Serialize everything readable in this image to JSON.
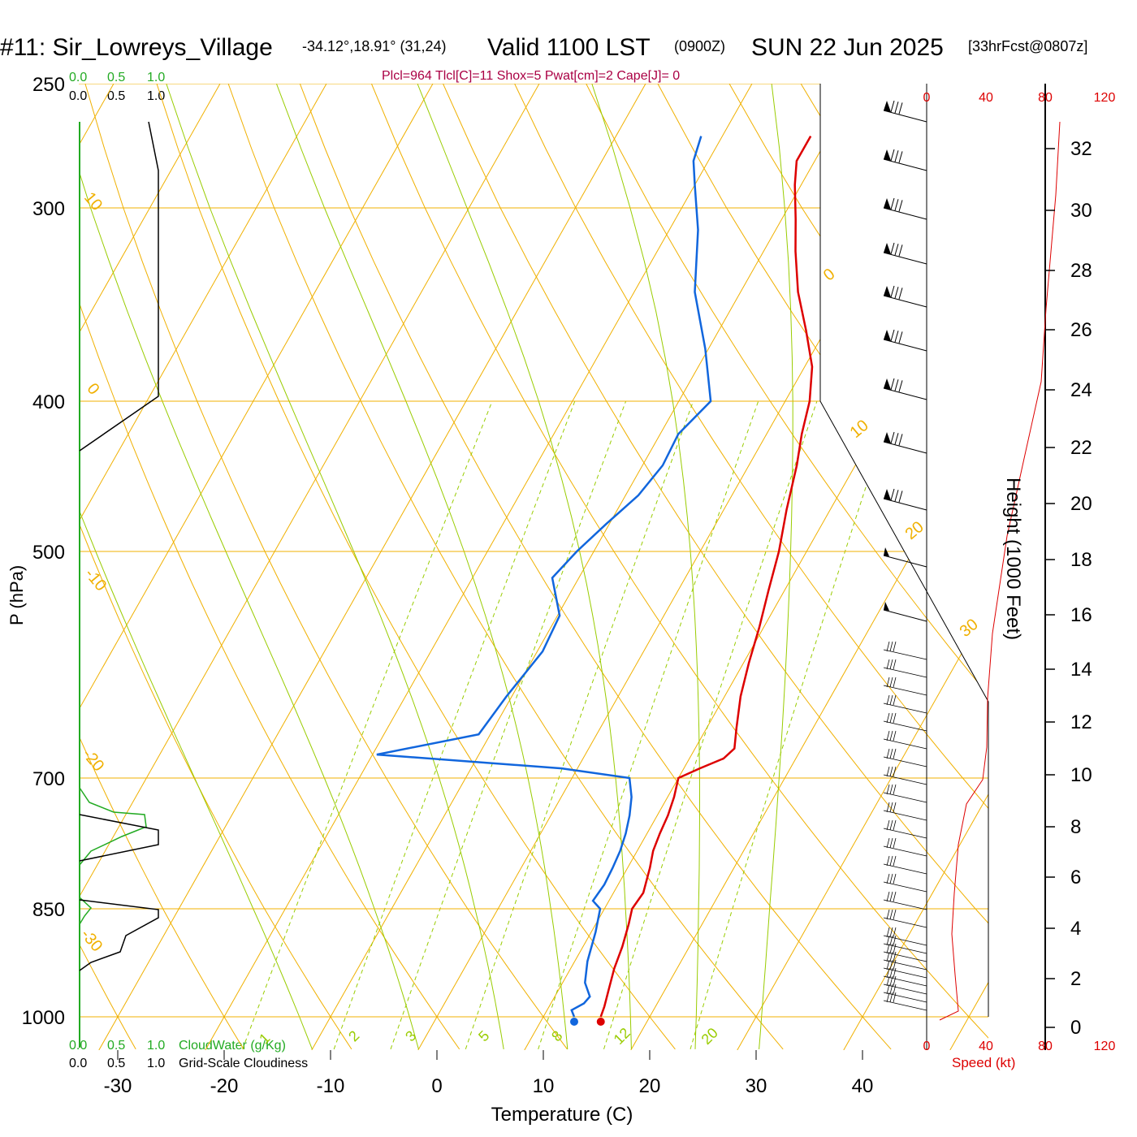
{
  "header": {
    "station": "#11: Sir_Lowreys_Village",
    "coords": "-34.12°,18.91° (31,24)",
    "valid": "Valid 1100 LST",
    "zulu": "(0900Z)",
    "date": "SUN 22 Jun 2025",
    "forecast": "[33hrFcst@0807z]",
    "indices": "Plcl=964 Tlcl[C]=11 Shox=5 Pwat[cm]=2 Cape[J]= 0"
  },
  "cloud_scale_top_green": [
    "0.0",
    "0.5",
    "1.0"
  ],
  "cloud_scale_top_black": [
    "0.0",
    "0.5",
    "1.0"
  ],
  "cloud_scale_bottom_green": [
    "0.0",
    "0.5",
    "1.0"
  ],
  "cloud_scale_bottom_black": [
    "0.0",
    "0.5",
    "1.0"
  ],
  "cloudwater_label": "CloudWater (g/Kg)",
  "cloudiness_label": "Grid-Scale Cloudiness",
  "colors": {
    "temperature": "#dd0000",
    "dewpoint": "#1166dd",
    "isobar": "#f0b000",
    "dry_adiabat": "#99cc00",
    "cloud_water": "#22aa22",
    "cloudiness": "#000000"
  },
  "chart_data": {
    "type": "line",
    "xlabel": "Temperature (C)",
    "ylabel": "P (hPa)",
    "x_ticks": [
      "-30",
      "-20",
      "-10",
      "0",
      "10",
      "20",
      "30",
      "40"
    ],
    "p_ticks": [
      "250",
      "300",
      "400",
      "500",
      "700",
      "850",
      "1000"
    ],
    "isotherm_labels": [
      {
        "text": "0",
        "axis": "right"
      },
      {
        "text": "10",
        "axis": "right"
      },
      {
        "text": "20",
        "axis": "right"
      },
      {
        "text": "30",
        "axis": "right"
      },
      {
        "text": "10",
        "axis": "left"
      },
      {
        "text": "0",
        "axis": "left"
      },
      {
        "text": "-10",
        "axis": "left"
      },
      {
        "text": "-20",
        "axis": "left"
      },
      {
        "text": "-30",
        "axis": "left"
      }
    ],
    "mixing_ratio_labels": [
      "1",
      "2",
      "3",
      "5",
      "8",
      "12",
      "20"
    ],
    "series": [
      {
        "name": "Temperature",
        "points": [
          [
            15.4,
            1000
          ],
          [
            15.2,
            985
          ],
          [
            14.7,
            960
          ],
          [
            14.1,
            930
          ],
          [
            13.7,
            900
          ],
          [
            13.1,
            870
          ],
          [
            12.6,
            850
          ],
          [
            12.8,
            830
          ],
          [
            12.1,
            800
          ],
          [
            11.5,
            780
          ],
          [
            11.2,
            760
          ],
          [
            11.0,
            740
          ],
          [
            10.6,
            720
          ],
          [
            10.0,
            700
          ],
          [
            11.5,
            690
          ],
          [
            13.2,
            680
          ],
          [
            13.7,
            670
          ],
          [
            12.8,
            650
          ],
          [
            11.5,
            620
          ],
          [
            10.5,
            590
          ],
          [
            9.6,
            560
          ],
          [
            8.5,
            530
          ],
          [
            7.4,
            500
          ],
          [
            5.9,
            470
          ],
          [
            4.5,
            440
          ],
          [
            3.3,
            420
          ],
          [
            2.3,
            400
          ],
          [
            0.7,
            380
          ],
          [
            -1.8,
            360
          ],
          [
            -4.6,
            340
          ],
          [
            -7.0,
            320
          ],
          [
            -8.7,
            305
          ],
          [
            -10.6,
            290
          ],
          [
            -11.7,
            280
          ],
          [
            -11.7,
            270
          ]
        ]
      },
      {
        "name": "Dewpoint",
        "points": [
          [
            12.9,
            1000
          ],
          [
            12.3,
            990
          ],
          [
            13.1,
            980
          ],
          [
            13.3,
            970
          ],
          [
            12.1,
            950
          ],
          [
            11.2,
            920
          ],
          [
            10.4,
            880
          ],
          [
            9.6,
            850
          ],
          [
            8.5,
            840
          ],
          [
            8.7,
            820
          ],
          [
            8.6,
            800
          ],
          [
            8.4,
            780
          ],
          [
            8.0,
            760
          ],
          [
            7.4,
            740
          ],
          [
            6.6,
            720
          ],
          [
            5.4,
            700
          ],
          [
            -1.5,
            690
          ],
          [
            -19.6,
            676
          ],
          [
            -11.1,
            656
          ],
          [
            -10.5,
            620
          ],
          [
            -9.5,
            580
          ],
          [
            -9.8,
            550
          ],
          [
            -12.5,
            520
          ],
          [
            -11.6,
            500
          ],
          [
            -10.3,
            480
          ],
          [
            -8.8,
            460
          ],
          [
            -8.1,
            440
          ],
          [
            -8.3,
            420
          ],
          [
            -7.0,
            400
          ],
          [
            -10.3,
            370
          ],
          [
            -14.3,
            340
          ],
          [
            -17.3,
            310
          ],
          [
            -20.0,
            290
          ],
          [
            -21.4,
            280
          ],
          [
            -22.0,
            270
          ]
        ]
      }
    ],
    "surface_markers": {
      "temperature": 15.4,
      "dewpoint": 12.9
    },
    "wind": {
      "speed_ticks": [
        "0",
        "40",
        "80",
        "120"
      ],
      "speed_label": "Speed (kt)",
      "height_label": "Height (1000 Feet)",
      "height_ticks": [
        "0",
        "2",
        "4",
        "6",
        "8",
        "10",
        "12",
        "14",
        "16",
        "18",
        "20",
        "22",
        "24",
        "26",
        "28",
        "30",
        "32"
      ]
    }
  }
}
